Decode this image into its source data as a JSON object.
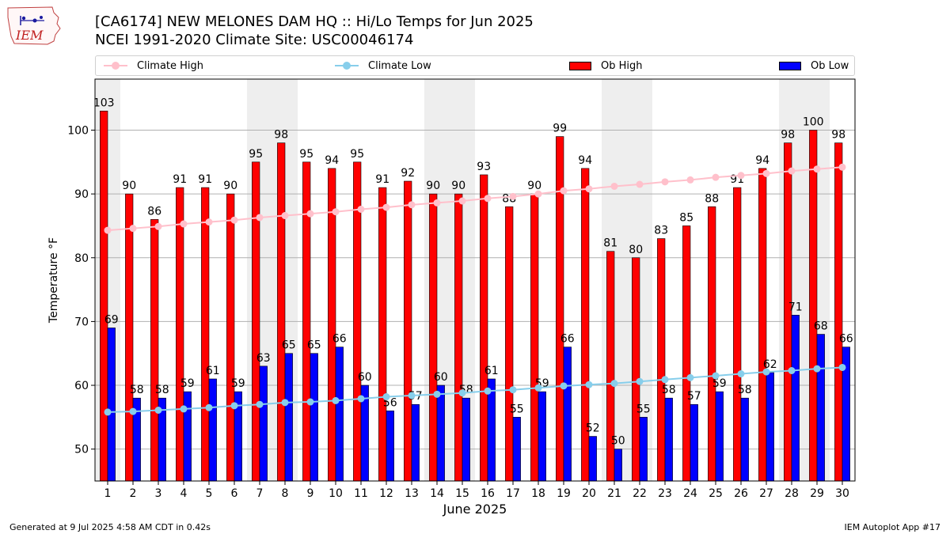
{
  "header": {
    "logo_text": "IEM",
    "title_line1": "[CA6174] NEW MELONES DAM HQ :: Hi/Lo Temps for Jun 2025",
    "title_line2": "NCEI 1991-2020 Climate Site: USC00046174"
  },
  "legend": {
    "climate_high": "Climate High",
    "climate_low": "Climate Low",
    "ob_high": "Ob High",
    "ob_low": "Ob Low"
  },
  "colors": {
    "ob_high": "#ff0000",
    "ob_low": "#0000ff",
    "climate_high": "#ffc0cb",
    "climate_low": "#87ceeb",
    "weekend_shade": "#eeeeee",
    "grid": "#b0b0b0"
  },
  "chart_data": {
    "type": "bar",
    "xlabel": "June 2025",
    "ylabel": "Temperature °F",
    "ylim": [
      45,
      108
    ],
    "yticks": [
      50,
      60,
      70,
      80,
      90,
      100
    ],
    "grid": "horizontal",
    "legend_position": "top",
    "categories": [
      "1",
      "2",
      "3",
      "4",
      "5",
      "6",
      "7",
      "8",
      "9",
      "10",
      "11",
      "12",
      "13",
      "14",
      "15",
      "16",
      "17",
      "18",
      "19",
      "20",
      "21",
      "22",
      "23",
      "24",
      "25",
      "26",
      "27",
      "28",
      "29",
      "30"
    ],
    "shaded_days": [
      1,
      7,
      8,
      14,
      15,
      21,
      22,
      28,
      29
    ],
    "series": [
      {
        "name": "Ob High",
        "kind": "bar",
        "values": [
          103,
          90,
          86,
          91,
          91,
          90,
          95,
          98,
          95,
          94,
          95,
          91,
          92,
          90,
          90,
          93,
          88,
          90,
          99,
          94,
          81,
          80,
          83,
          85,
          88,
          91,
          94,
          98,
          100,
          98
        ]
      },
      {
        "name": "Ob Low",
        "kind": "bar",
        "values": [
          69,
          58,
          58,
          59,
          61,
          59,
          63,
          65,
          65,
          66,
          60,
          56,
          57,
          60,
          58,
          61,
          55,
          59,
          66,
          52,
          50,
          55,
          58,
          57,
          59,
          58,
          62,
          71,
          68,
          66
        ]
      },
      {
        "name": "Climate High",
        "kind": "line",
        "values": [
          84.3,
          84.6,
          84.9,
          85.3,
          85.6,
          85.9,
          86.3,
          86.6,
          86.9,
          87.2,
          87.6,
          87.9,
          88.3,
          88.6,
          88.9,
          89.3,
          89.6,
          90.0,
          90.5,
          90.8,
          91.2,
          91.5,
          91.9,
          92.2,
          92.6,
          92.9,
          93.2,
          93.6,
          93.9,
          94.2
        ]
      },
      {
        "name": "Climate Low",
        "kind": "line",
        "values": [
          55.8,
          55.9,
          56.1,
          56.3,
          56.5,
          56.8,
          57.0,
          57.3,
          57.4,
          57.6,
          57.9,
          58.2,
          58.4,
          58.6,
          58.8,
          59.1,
          59.3,
          59.6,
          59.9,
          60.1,
          60.3,
          60.6,
          60.9,
          61.2,
          61.5,
          61.8,
          62.1,
          62.3,
          62.6,
          62.8
        ]
      }
    ]
  },
  "footer": {
    "generated": "Generated at 9 Jul 2025 4:58 AM CDT in 0.42s",
    "app": "IEM Autoplot App #17"
  }
}
